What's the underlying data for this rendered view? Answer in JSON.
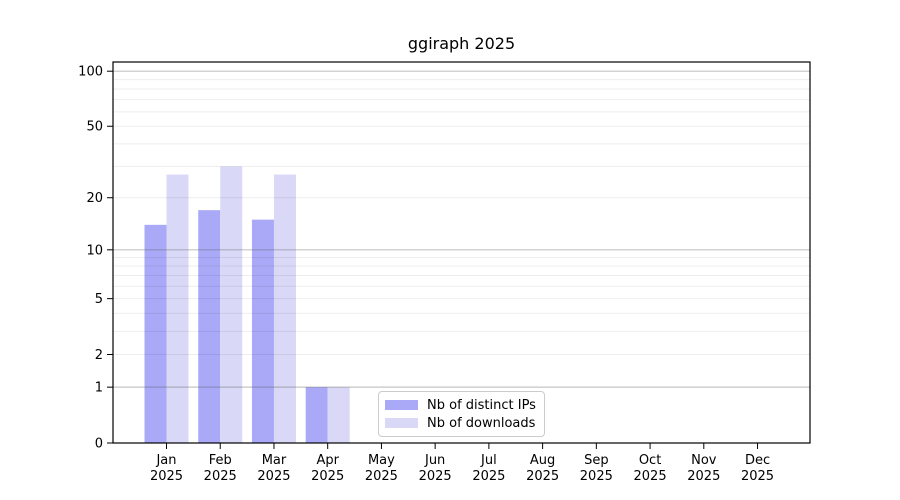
{
  "chart_data": {
    "type": "bar",
    "title": "ggiraph 2025",
    "x": {
      "months": [
        "Jan",
        "Feb",
        "Mar",
        "Apr",
        "May",
        "Jun",
        "Jul",
        "Aug",
        "Sep",
        "Oct",
        "Nov",
        "Dec"
      ],
      "year": "2025"
    },
    "y_axis": {
      "scale": "log1p",
      "tick_labels": [
        0,
        1,
        2,
        5,
        10,
        20,
        50,
        100
      ],
      "ylim": [
        0,
        112
      ]
    },
    "grid": {
      "minor_values": [
        2,
        3,
        4,
        5,
        6,
        7,
        8,
        9,
        20,
        30,
        40,
        50,
        60,
        70,
        80,
        90
      ],
      "major_values": [
        1,
        10,
        100
      ],
      "grid_on": true
    },
    "series": [
      {
        "name": "Nb of distinct IPs",
        "color": "#a9a9f7",
        "values": [
          14,
          17,
          15,
          1,
          0,
          0,
          0,
          0,
          0,
          0,
          0,
          0
        ]
      },
      {
        "name": "Nb of downloads",
        "color": "#d9d9f7",
        "values": [
          27,
          30,
          27,
          1,
          0,
          0,
          0,
          0,
          0,
          0,
          0,
          0
        ]
      }
    ],
    "legend": {
      "position": "inside-bottom-center"
    }
  },
  "colors": {
    "background": "#ffffff",
    "spine": "#000000",
    "grid_major": "#c6c6c6",
    "grid_minor": "#ededed",
    "text": "#000000",
    "legend_border": "#cccccc"
  }
}
